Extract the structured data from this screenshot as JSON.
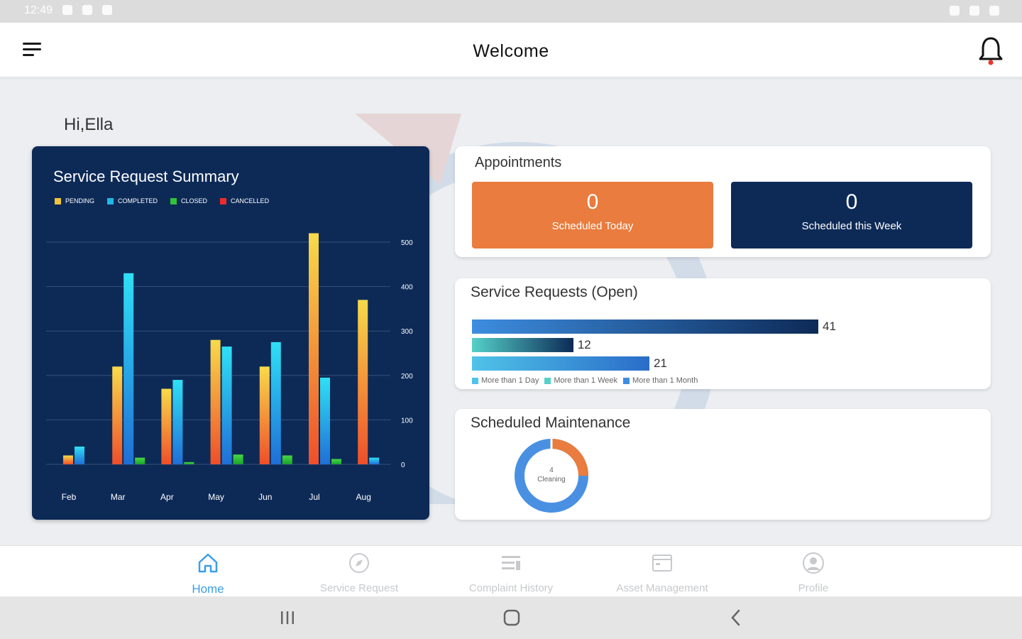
{
  "status_bar": {
    "time": "12:49"
  },
  "app_bar": {
    "title": "Welcome"
  },
  "greeting": "Hi,Ella",
  "summary": {
    "title": "Service Request Summary",
    "legend": [
      {
        "label": "PENDING",
        "color": "#f3c33a"
      },
      {
        "label": "COMPLETED",
        "color": "#22b6e8"
      },
      {
        "label": "CLOSED",
        "color": "#31c33a"
      },
      {
        "label": "CANCELLED",
        "color": "#ee2b2b"
      }
    ]
  },
  "chart_data": {
    "type": "bar",
    "title": "Service Request Summary",
    "categories": [
      "Feb",
      "Mar",
      "Apr",
      "May",
      "Jun",
      "Jul",
      "Aug"
    ],
    "series": [
      {
        "name": "PENDING",
        "values": [
          20,
          220,
          170,
          280,
          220,
          520,
          370
        ]
      },
      {
        "name": "COMPLETED",
        "values": [
          40,
          430,
          190,
          265,
          275,
          195,
          15
        ]
      },
      {
        "name": "CLOSED",
        "values": [
          0,
          15,
          5,
          22,
          20,
          12,
          0
        ]
      },
      {
        "name": "CANCELLED",
        "values": [
          0,
          0,
          0,
          0,
          0,
          0,
          0
        ]
      }
    ],
    "yticks": [
      "0",
      "100",
      "200",
      "300",
      "400",
      "500"
    ],
    "ylim": [
      0,
      500
    ],
    "grid": true,
    "legend_position": "top-left"
  },
  "appointments": {
    "title": "Appointments",
    "today": {
      "value": "0",
      "label": "Scheduled Today",
      "color": "#e97c3e"
    },
    "week": {
      "value": "0",
      "label": "Scheduled this Week",
      "color": "#0d2a57"
    }
  },
  "service_requests_open": {
    "title": "Service Requests (Open)",
    "bars": [
      {
        "label": "More than 1 Month",
        "value": 41
      },
      {
        "label": "More than 1 Week",
        "value": 12
      },
      {
        "label": "More than 1 Day",
        "value": 21
      }
    ],
    "legend": [
      "More than 1 Day",
      "More than 1 Week",
      "More than 1 Month"
    ]
  },
  "maintenance": {
    "title": "Scheduled Maintenance",
    "donut_count": "4",
    "donut_label": "Cleaning",
    "donut_fraction_orange": 0.25
  },
  "nav": [
    {
      "label": "Home",
      "icon": "home-icon",
      "active": true
    },
    {
      "label": "Service Request",
      "icon": "compass-icon",
      "active": false
    },
    {
      "label": "Complaint History",
      "icon": "list-icon",
      "active": false
    },
    {
      "label": "Asset Management",
      "icon": "folder-icon",
      "active": false
    },
    {
      "label": "Profile",
      "icon": "person-icon",
      "active": false
    }
  ]
}
